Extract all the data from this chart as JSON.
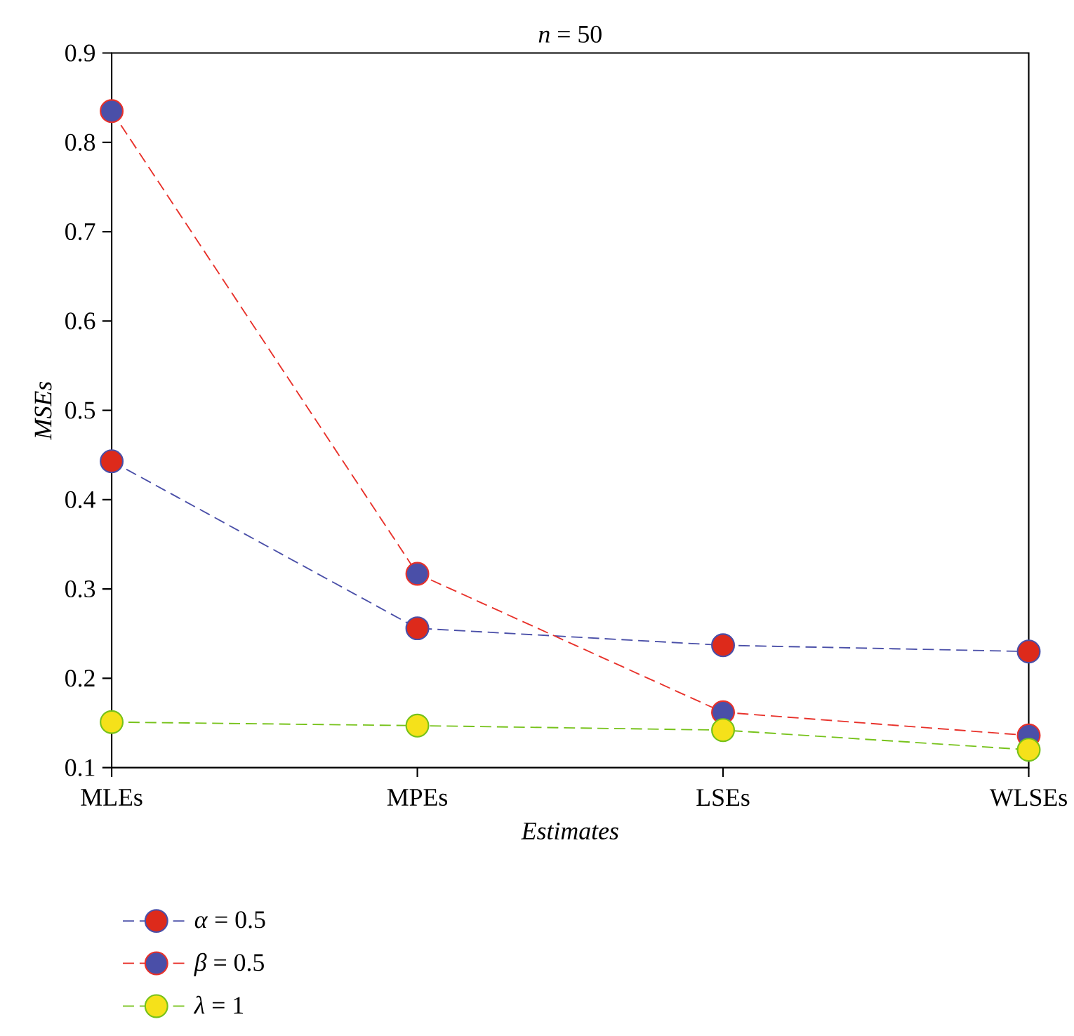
{
  "chart_data": {
    "type": "line",
    "title": "*n* = 50",
    "xlabel": "Estimates",
    "ylabel": "MSEs",
    "categories": [
      "MLEs",
      "MPEs",
      "LSEs",
      "WLSEs"
    ],
    "series": [
      {
        "name": "*α* = 0.5",
        "color": "#4a4fa8",
        "colors": [
          "#dd2a1b",
          "#dd2a1b",
          "#dd2a1b",
          "#dd2a1b"
        ],
        "values": [
          0.443,
          0.256,
          0.237,
          0.23
        ]
      },
      {
        "name": "*β* = 0.5",
        "color": "#e8312a",
        "colors": [
          "#4a4fa8",
          "#4a4fa8",
          "#4a4fa8",
          "#4a4fa8"
        ],
        "values": [
          0.835,
          0.317,
          0.162,
          0.136
        ]
      },
      {
        "name": "*λ* = 1",
        "color": "#76c21a",
        "colors": [
          "#f5e11a",
          "#f5e11a",
          "#f5e11a",
          "#f5e11a"
        ],
        "values": [
          0.151,
          0.147,
          0.142,
          0.12
        ]
      }
    ],
    "ylim": [
      0.1,
      0.9
    ],
    "yticks": [
      0.1,
      0.2,
      0.3,
      0.4,
      0.5,
      0.6,
      0.7,
      0.8,
      0.9
    ],
    "grid": false,
    "legend": "bottom left",
    "marker": "circle",
    "line_style": "dashed"
  }
}
